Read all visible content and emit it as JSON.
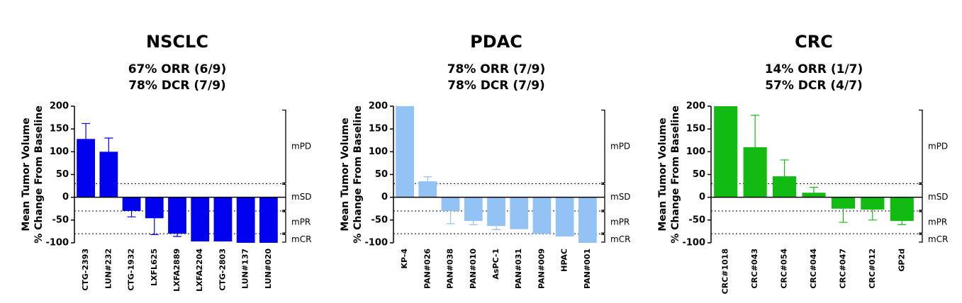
{
  "chart_data": [
    {
      "type": "bar",
      "title": "NSCLC",
      "subtitle": [
        "67% ORR (6/9)",
        "78% DCR (7/9)"
      ],
      "y_label": [
        "Mean Tumor Volume",
        "% Change From Baseline"
      ],
      "categories": [
        "CTG-2393",
        "LUN#232",
        "CTG-1932",
        "LXFL625",
        "LXFA2889",
        "LXFA2204",
        "CTG-2803",
        "LUN#137",
        "LUN#020"
      ],
      "values": [
        128,
        100,
        -30,
        -46,
        -80,
        -97,
        -97,
        -100,
        -100
      ],
      "errors": [
        34,
        30,
        13,
        36,
        6,
        null,
        null,
        null,
        null
      ],
      "color": "#0000ee",
      "ylim": [
        -100,
        200
      ],
      "yticks": [
        -100,
        -50,
        0,
        50,
        100,
        150,
        200
      ],
      "reference_lines": [
        30,
        -30,
        -80
      ],
      "zones": [
        {
          "label": "mPD",
          "range": [
            30,
            193
          ]
        },
        {
          "label": "mSD",
          "range": [
            -30,
            30
          ]
        },
        {
          "label": "mPR",
          "range": [
            -80,
            -30
          ]
        },
        {
          "label": "mCR",
          "range": [
            -100,
            -80
          ]
        }
      ]
    },
    {
      "type": "bar",
      "title": "PDAC",
      "subtitle": [
        "78% ORR (7/9)",
        "78% DCR (7/9)"
      ],
      "y_label": [
        "Mean Tumor Volume",
        "% Change From Baseline"
      ],
      "categories": [
        "KP-4",
        "PAN#026",
        "PAN#038",
        "PAN#010",
        "AsPC-1",
        "PAN#031",
        "PAN#009",
        "HPAC",
        "PAN#001"
      ],
      "values": [
        200,
        35,
        -30,
        -52,
        -63,
        -70,
        -80,
        -86,
        -100
      ],
      "errors": [
        null,
        10,
        28,
        8,
        8,
        null,
        null,
        null,
        null
      ],
      "color": "#93c3f5",
      "ylim": [
        -100,
        200
      ],
      "yticks": [
        -100,
        -50,
        0,
        50,
        100,
        150,
        200
      ],
      "reference_lines": [
        30,
        -30,
        -80
      ],
      "zones": [
        {
          "label": "mPD",
          "range": [
            30,
            193
          ]
        },
        {
          "label": "mSD",
          "range": [
            -30,
            30
          ]
        },
        {
          "label": "mPR",
          "range": [
            -80,
            -30
          ]
        },
        {
          "label": "mCR",
          "range": [
            -100,
            -80
          ]
        }
      ]
    },
    {
      "type": "bar",
      "title": "CRC",
      "subtitle": [
        "14% ORR (1/7)",
        "57% DCR (4/7)"
      ],
      "y_label": [
        "Mean Tumor Volume",
        "% Change From Baseline"
      ],
      "categories": [
        "CRC#1018",
        "CRC#043",
        "CRC#054",
        "CRC#044",
        "CRC#047",
        "CRC#012",
        "GP2d"
      ],
      "values": [
        200,
        110,
        46,
        10,
        -25,
        -27,
        -52
      ],
      "errors": [
        null,
        70,
        36,
        12,
        30,
        23,
        8
      ],
      "color": "#11bb11",
      "ylim": [
        -100,
        200
      ],
      "yticks": [
        -100,
        -50,
        0,
        50,
        100,
        150,
        200
      ],
      "reference_lines": [
        30,
        -30,
        -80
      ],
      "zones": [
        {
          "label": "mPD",
          "range": [
            30,
            193
          ]
        },
        {
          "label": "mSD",
          "range": [
            -30,
            30
          ]
        },
        {
          "label": "mPR",
          "range": [
            -80,
            -30
          ]
        },
        {
          "label": "mCR",
          "range": [
            -100,
            -80
          ]
        }
      ]
    }
  ]
}
